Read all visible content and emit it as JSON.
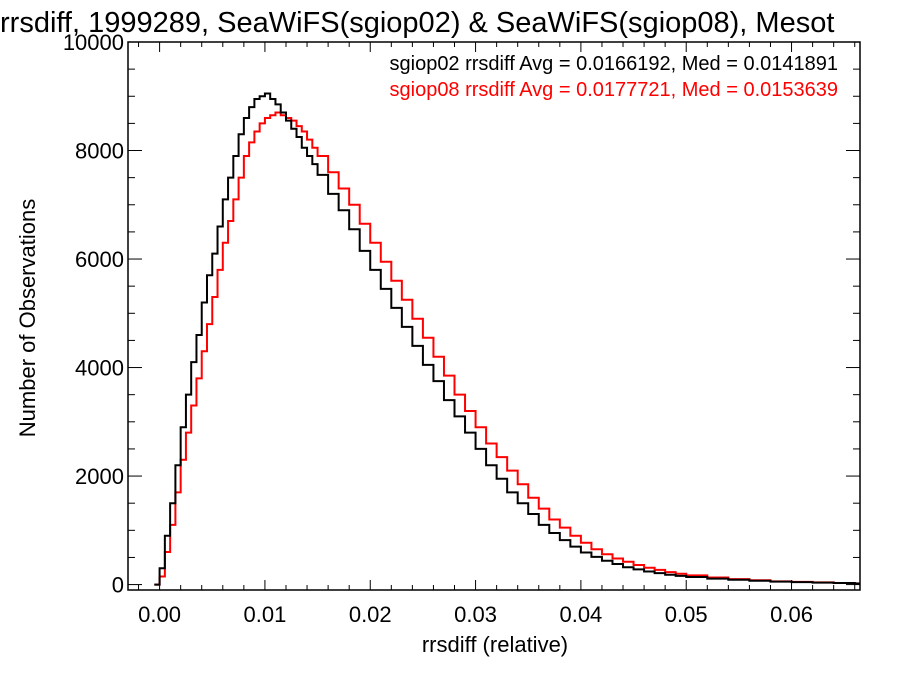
{
  "chart_data": {
    "type": "line",
    "step": true,
    "title": "rrsdiff, 1999289, SeaWiFS(sgiop02) & SeaWiFS(sgiop08), Mesot",
    "xlabel": "rrsdiff (relative)",
    "ylabel": "Number of Observations",
    "xlim": [
      -0.003,
      0.0665
    ],
    "ylim": [
      -100,
      10000
    ],
    "x_ticks": [
      0.0,
      0.01,
      0.02,
      0.03,
      0.04,
      0.05,
      0.06
    ],
    "x_tick_labels": [
      "0.00",
      "0.01",
      "0.02",
      "0.03",
      "0.04",
      "0.05",
      "0.06"
    ],
    "y_ticks": [
      0,
      2000,
      4000,
      6000,
      8000,
      10000
    ],
    "y_tick_labels": [
      "0",
      "2000",
      "4000",
      "6000",
      "8000",
      "10000"
    ],
    "grid": false,
    "legend_position": "top-right",
    "annotations": [
      {
        "text": "sgiop02 rrsdiff Avg = 0.0166192, Med = 0.0141891",
        "color": "#000000"
      },
      {
        "text": "sgiop08 rrsdiff Avg = 0.0177721, Med = 0.0153639",
        "color": "#ff0000"
      }
    ],
    "series": [
      {
        "color": "#000000",
        "x": [
          -0.0005,
          0.0,
          0.0005,
          0.001,
          0.0015,
          0.002,
          0.0025,
          0.003,
          0.0035,
          0.004,
          0.0045,
          0.005,
          0.0055,
          0.006,
          0.0065,
          0.007,
          0.0075,
          0.008,
          0.0085,
          0.009,
          0.0095,
          0.01,
          0.0105,
          0.011,
          0.0115,
          0.012,
          0.0125,
          0.013,
          0.0135,
          0.014,
          0.0145,
          0.015,
          0.016,
          0.017,
          0.018,
          0.019,
          0.02,
          0.021,
          0.022,
          0.023,
          0.024,
          0.025,
          0.026,
          0.027,
          0.028,
          0.029,
          0.03,
          0.031,
          0.032,
          0.033,
          0.034,
          0.035,
          0.036,
          0.037,
          0.038,
          0.039,
          0.04,
          0.041,
          0.042,
          0.043,
          0.044,
          0.045,
          0.046,
          0.047,
          0.048,
          0.049,
          0.05,
          0.052,
          0.054,
          0.056,
          0.058,
          0.06,
          0.062,
          0.064,
          0.066
        ],
        "y": [
          0,
          300,
          900,
          1500,
          2200,
          2900,
          3500,
          4100,
          4600,
          5200,
          5700,
          6100,
          6600,
          7100,
          7500,
          7900,
          8300,
          8600,
          8800,
          8950,
          9000,
          9050,
          8950,
          8850,
          8700,
          8550,
          8400,
          8250,
          8050,
          7900,
          7750,
          7550,
          7200,
          6900,
          6550,
          6150,
          5800,
          5450,
          5100,
          4750,
          4400,
          4050,
          3750,
          3400,
          3100,
          2800,
          2500,
          2200,
          1950,
          1700,
          1500,
          1300,
          1100,
          950,
          820,
          700,
          590,
          510,
          440,
          380,
          320,
          280,
          240,
          210,
          180,
          160,
          140,
          110,
          90,
          70,
          55,
          45,
          35,
          28,
          20
        ]
      },
      {
        "color": "#ff0000",
        "x": [
          -0.0005,
          0.0,
          0.0005,
          0.001,
          0.0015,
          0.002,
          0.0025,
          0.003,
          0.0035,
          0.004,
          0.0045,
          0.005,
          0.0055,
          0.006,
          0.0065,
          0.007,
          0.0075,
          0.008,
          0.0085,
          0.009,
          0.0095,
          0.01,
          0.0105,
          0.011,
          0.0115,
          0.012,
          0.0125,
          0.013,
          0.0135,
          0.014,
          0.0145,
          0.015,
          0.016,
          0.017,
          0.018,
          0.019,
          0.02,
          0.021,
          0.022,
          0.023,
          0.024,
          0.025,
          0.026,
          0.027,
          0.028,
          0.029,
          0.03,
          0.031,
          0.032,
          0.033,
          0.034,
          0.035,
          0.036,
          0.037,
          0.038,
          0.039,
          0.04,
          0.041,
          0.042,
          0.043,
          0.044,
          0.045,
          0.046,
          0.047,
          0.048,
          0.049,
          0.05,
          0.052,
          0.054,
          0.056,
          0.058,
          0.06,
          0.062,
          0.064,
          0.066
        ],
        "y": [
          0,
          150,
          600,
          1100,
          1700,
          2300,
          2800,
          3300,
          3800,
          4300,
          4800,
          5300,
          5800,
          6300,
          6700,
          7100,
          7500,
          7900,
          8150,
          8350,
          8500,
          8600,
          8650,
          8700,
          8650,
          8600,
          8550,
          8450,
          8350,
          8200,
          8050,
          7900,
          7600,
          7300,
          7000,
          6650,
          6300,
          5950,
          5600,
          5250,
          4900,
          4550,
          4200,
          3850,
          3500,
          3200,
          2900,
          2600,
          2350,
          2100,
          1850,
          1600,
          1400,
          1200,
          1050,
          900,
          770,
          650,
          560,
          480,
          420,
          360,
          310,
          270,
          230,
          200,
          170,
          130,
          100,
          80,
          60,
          50,
          40,
          30,
          22
        ]
      }
    ]
  }
}
